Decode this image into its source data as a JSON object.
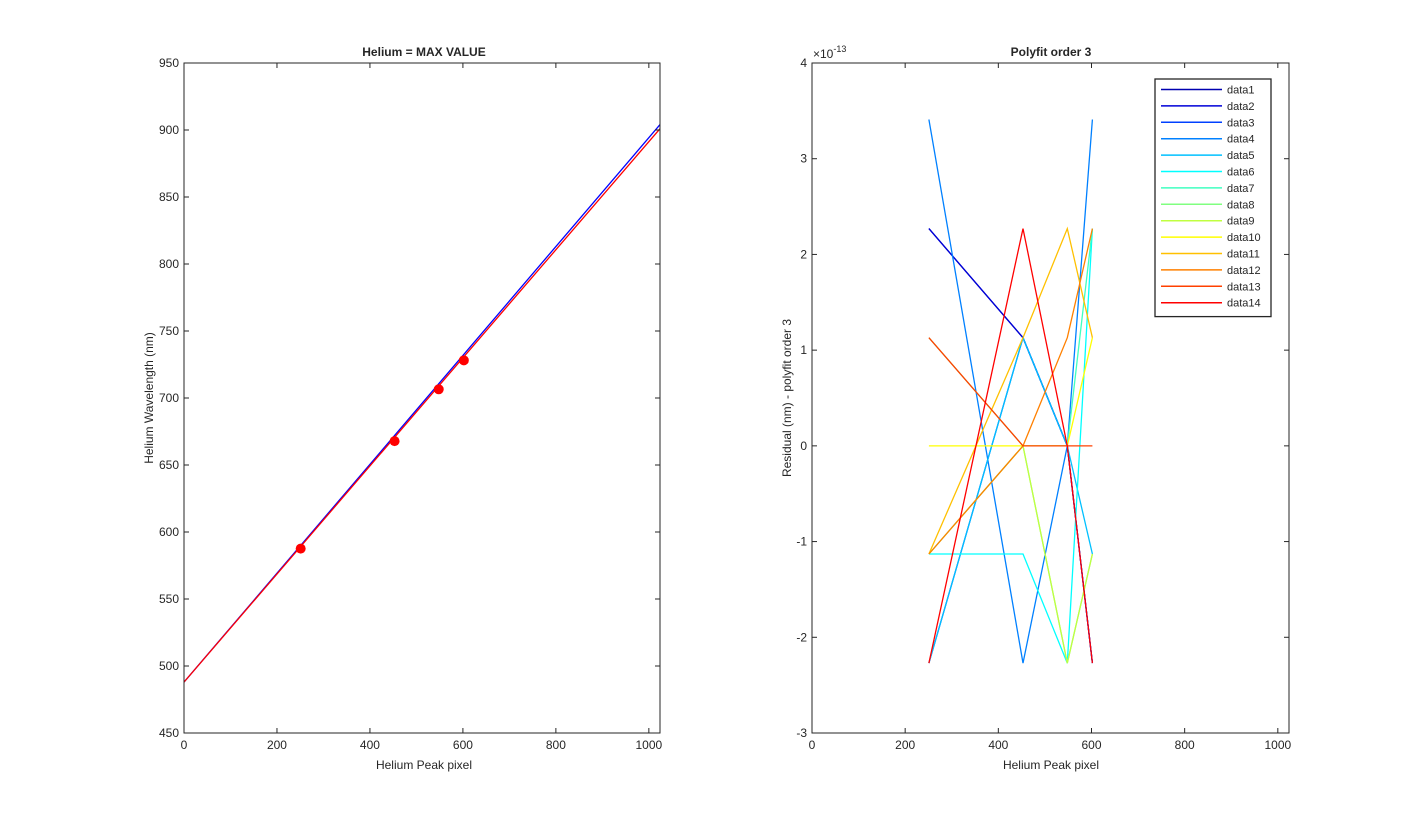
{
  "chart_data": [
    {
      "type": "line",
      "title": "Helium = MAX VALUE",
      "xlabel": "Helium Peak pixel",
      "ylabel": "Helium Wavelength (nm)",
      "xlim": [
        0,
        1024
      ],
      "ylim": [
        450,
        950
      ],
      "xticks": [
        0,
        200,
        400,
        600,
        800,
        1000
      ],
      "yticks": [
        450,
        500,
        550,
        600,
        650,
        700,
        750,
        800,
        850,
        900,
        950
      ],
      "grid": false,
      "series": [
        {
          "color": "#0000ff",
          "x": [
            0,
            1024
          ],
          "y": [
            488,
            904
          ]
        },
        {
          "color": "#ff0000",
          "x": [
            0,
            1024
          ],
          "y": [
            488,
            901
          ]
        }
      ],
      "markers": {
        "color": "#ff0000",
        "x": [
          251,
          453,
          548,
          602
        ],
        "y": [
          587.6,
          667.8,
          706.5,
          728.1
        ]
      }
    },
    {
      "type": "line",
      "title": "Polyfit order 3",
      "xlabel": "Helium Peak pixel",
      "ylabel": "Residual (nm) - polyfit order 3",
      "exponent_label": "×10",
      "exponent_power": "-13",
      "xlim": [
        0,
        1024
      ],
      "ylim": [
        -3,
        4
      ],
      "xticks": [
        0,
        200,
        400,
        600,
        800,
        1000
      ],
      "yticks": [
        -3,
        -2,
        -1,
        0,
        1,
        2,
        3,
        4
      ],
      "grid": false,
      "legend_position": "top-right",
      "x": [
        251,
        453,
        548,
        602
      ],
      "series": [
        {
          "name": "data1",
          "color": "#0000b0",
          "values": [
            2.27,
            1.13,
            0,
            -2.27
          ]
        },
        {
          "name": "data2",
          "color": "#0000d8",
          "values": [
            2.27,
            1.13,
            0,
            -2.27
          ]
        },
        {
          "name": "data3",
          "color": "#0040ff",
          "values": [
            -2.27,
            1.13,
            0,
            -2.27
          ]
        },
        {
          "name": "data4",
          "color": "#0080ff",
          "values": [
            3.41,
            -2.27,
            0,
            3.41
          ]
        },
        {
          "name": "data5",
          "color": "#00c0ff",
          "values": [
            -2.27,
            1.13,
            0,
            -1.13
          ]
        },
        {
          "name": "data6",
          "color": "#00ffff",
          "values": [
            -1.13,
            -1.13,
            -2.27,
            2.27
          ]
        },
        {
          "name": "data7",
          "color": "#40ffc0",
          "values": [
            -1.13,
            0,
            0,
            2.27
          ]
        },
        {
          "name": "data8",
          "color": "#80ff80",
          "values": [
            1.13,
            0,
            -2.27,
            -1.13
          ]
        },
        {
          "name": "data9",
          "color": "#c0ff40",
          "values": [
            -1.13,
            0,
            -2.27,
            -1.13
          ]
        },
        {
          "name": "data10",
          "color": "#ffff00",
          "values": [
            0,
            0,
            0,
            1.13
          ]
        },
        {
          "name": "data11",
          "color": "#ffc000",
          "values": [
            -1.13,
            1.13,
            2.27,
            1.13
          ]
        },
        {
          "name": "data12",
          "color": "#ff8000",
          "values": [
            -1.13,
            0,
            1.13,
            2.27
          ]
        },
        {
          "name": "data13",
          "color": "#ff4000",
          "values": [
            1.13,
            0,
            0,
            0
          ]
        },
        {
          "name": "data14",
          "color": "#ff0000",
          "values": [
            -2.27,
            2.27,
            0,
            -2.27
          ]
        }
      ]
    }
  ]
}
